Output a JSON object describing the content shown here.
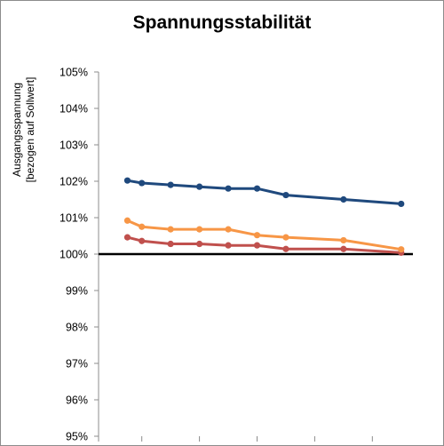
{
  "chart_data": {
    "type": "line",
    "title": "Spannungsstabilität",
    "ylabel": "Ausgangsspannung\n[bezogen auf Sollwert]",
    "xlabel": "",
    "ylim": [
      95,
      105
    ],
    "yticks": [
      "95%",
      "96%",
      "97%",
      "98%",
      "99%",
      "100%",
      "101%",
      "102%",
      "103%",
      "104%",
      "105%"
    ],
    "grid": false,
    "legend": "none",
    "x": [
      1,
      1.5,
      2.5,
      3.5,
      4.5,
      5.5,
      6.5,
      8.5,
      10.5
    ],
    "reference_line": {
      "value": 100,
      "color": "#000000"
    },
    "series": [
      {
        "color": "#1f497d",
        "values": [
          102.02,
          101.95,
          101.9,
          101.85,
          101.8,
          101.8,
          101.62,
          101.5,
          101.38
        ]
      },
      {
        "color": "#f79646",
        "values": [
          100.92,
          100.75,
          100.68,
          100.68,
          100.68,
          100.52,
          100.46,
          100.38,
          100.13
        ]
      },
      {
        "color": "#c0504d",
        "values": [
          100.46,
          100.36,
          100.28,
          100.28,
          100.24,
          100.24,
          100.14,
          100.14,
          100.04
        ]
      }
    ]
  }
}
